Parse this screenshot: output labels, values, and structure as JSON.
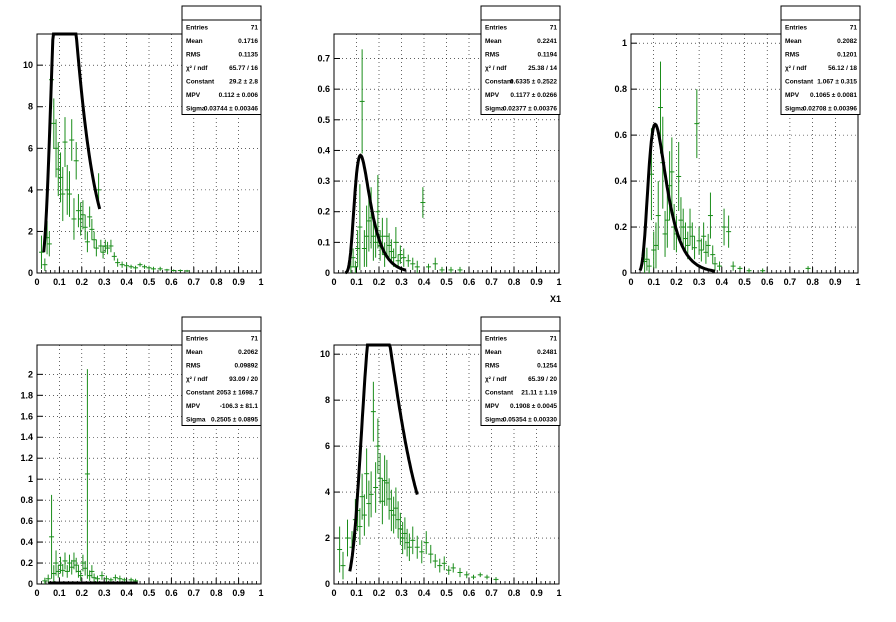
{
  "figure": {
    "xaxis_title": "X1"
  },
  "chart_data": [
    {
      "type": "scatter",
      "panel": 1,
      "xlim": [
        0,
        1
      ],
      "ylim": [
        0,
        11.5
      ],
      "xticks": [
        "0",
        "0.1",
        "0.2",
        "0.3",
        "0.4",
        "0.5",
        "0.6",
        "0.7",
        "0.8",
        "0.9",
        "1"
      ],
      "yticks": [
        0,
        2,
        4,
        6,
        8,
        10
      ],
      "grid": true,
      "stats": [
        {
          "label": "Entries",
          "value": "71"
        },
        {
          "label": "Mean",
          "value": "0.1716"
        },
        {
          "label": "RMS",
          "value": "0.1135"
        },
        {
          "label": "χ² / ndf",
          "value": "65.77 / 16"
        },
        {
          "label": "Constant",
          "value": "29.2 ± 2.8"
        },
        {
          "label": "MPV",
          "value": "0.112 ± 0.006"
        },
        {
          "label": "Sigma",
          "value": "0.03744 ± 0.00346"
        }
      ],
      "fit": {
        "constant": 29.2,
        "mpv": 0.112,
        "sigma": 0.03744,
        "range": [
          0.03,
          0.28
        ]
      },
      "points": [
        [
          0.02,
          1.0,
          0.8
        ],
        [
          0.035,
          0.4,
          0.3
        ],
        [
          0.045,
          1.7,
          0.8
        ],
        [
          0.055,
          1.4,
          0.6
        ],
        [
          0.065,
          9.3,
          1.4
        ],
        [
          0.075,
          7.2,
          1.2
        ],
        [
          0.085,
          6.0,
          1.4
        ],
        [
          0.095,
          5.0,
          1.3
        ],
        [
          0.105,
          4.6,
          1.2
        ],
        [
          0.115,
          3.8,
          1.3
        ],
        [
          0.125,
          6.3,
          1.2
        ],
        [
          0.135,
          4.0,
          1.2
        ],
        [
          0.145,
          3.8,
          1.1
        ],
        [
          0.155,
          6.4,
          1.0
        ],
        [
          0.165,
          2.6,
          1.0
        ],
        [
          0.175,
          5.4,
          0.9
        ],
        [
          0.185,
          3.0,
          0.8
        ],
        [
          0.195,
          2.6,
          0.8
        ],
        [
          0.205,
          2.8,
          0.7
        ],
        [
          0.215,
          2.2,
          0.6
        ],
        [
          0.225,
          1.5,
          0.5
        ],
        [
          0.235,
          2.7,
          0.5
        ],
        [
          0.245,
          2.1,
          0.5
        ],
        [
          0.255,
          1.6,
          0.4
        ],
        [
          0.265,
          1.2,
          0.4
        ],
        [
          0.275,
          4.0,
          0.8
        ],
        [
          0.285,
          1.3,
          0.3
        ],
        [
          0.295,
          1.0,
          0.3
        ],
        [
          0.305,
          1.3,
          0.3
        ],
        [
          0.315,
          1.2,
          0.3
        ],
        [
          0.33,
          1.3,
          0.3
        ],
        [
          0.345,
          0.8,
          0.2
        ],
        [
          0.36,
          0.5,
          0.2
        ],
        [
          0.38,
          0.4,
          0.15
        ],
        [
          0.4,
          0.35,
          0.15
        ],
        [
          0.42,
          0.3,
          0.1
        ],
        [
          0.44,
          0.25,
          0.1
        ],
        [
          0.46,
          0.4,
          0.1
        ],
        [
          0.48,
          0.3,
          0.1
        ],
        [
          0.5,
          0.25,
          0.1
        ],
        [
          0.52,
          0.2,
          0.1
        ],
        [
          0.55,
          0.2,
          0.1
        ],
        [
          0.58,
          0.15,
          0.05
        ],
        [
          0.61,
          0.12,
          0.05
        ],
        [
          0.64,
          0.12,
          0.05
        ],
        [
          0.67,
          0.1,
          0.05
        ]
      ]
    },
    {
      "type": "scatter",
      "panel": 2,
      "xlim": [
        0,
        1
      ],
      "ylim": [
        0,
        0.78
      ],
      "xticks": [
        "0",
        "0.1",
        "0.2",
        "0.3",
        "0.4",
        "0.5",
        "0.6",
        "0.7",
        "0.8",
        "0.9",
        "1"
      ],
      "yticks": [
        0,
        0.1,
        0.2,
        0.3,
        0.4,
        0.5,
        0.6,
        0.7
      ],
      "grid": true,
      "stats": [
        {
          "label": "Entries",
          "value": "71"
        },
        {
          "label": "Mean",
          "value": "0.2241"
        },
        {
          "label": "RMS",
          "value": "0.1194"
        },
        {
          "label": "χ² / ndf",
          "value": "25.38 / 14"
        },
        {
          "label": "Constant",
          "value": "0.6335 ± 0.2522"
        },
        {
          "label": "MPV",
          "value": "0.1177 ± 0.0266"
        },
        {
          "label": "Sigma",
          "value": "0.02377 ± 0.00376"
        }
      ],
      "fit": {
        "constant": 0.6335,
        "mpv": 0.1177,
        "sigma": 0.02377,
        "range": [
          0.05,
          0.32
        ]
      },
      "points": [
        [
          0.075,
          0.02,
          0.02
        ],
        [
          0.085,
          0.05,
          0.03
        ],
        [
          0.095,
          0.02,
          0.02
        ],
        [
          0.105,
          0.08,
          0.06
        ],
        [
          0.115,
          0.15,
          0.14
        ],
        [
          0.125,
          0.56,
          0.17
        ],
        [
          0.135,
          0.08,
          0.06
        ],
        [
          0.145,
          0.12,
          0.1
        ],
        [
          0.155,
          0.17,
          0.1
        ],
        [
          0.165,
          0.18,
          0.1
        ],
        [
          0.175,
          0.12,
          0.08
        ],
        [
          0.185,
          0.1,
          0.05
        ],
        [
          0.195,
          0.2,
          0.12
        ],
        [
          0.205,
          0.09,
          0.05
        ],
        [
          0.215,
          0.12,
          0.06
        ],
        [
          0.225,
          0.06,
          0.04
        ],
        [
          0.235,
          0.12,
          0.06
        ],
        [
          0.245,
          0.09,
          0.04
        ],
        [
          0.255,
          0.07,
          0.04
        ],
        [
          0.265,
          0.05,
          0.03
        ],
        [
          0.275,
          0.1,
          0.05
        ],
        [
          0.285,
          0.04,
          0.02
        ],
        [
          0.295,
          0.06,
          0.03
        ],
        [
          0.31,
          0.05,
          0.03
        ],
        [
          0.33,
          0.04,
          0.02
        ],
        [
          0.35,
          0.03,
          0.02
        ],
        [
          0.37,
          0.02,
          0.02
        ],
        [
          0.395,
          0.23,
          0.05
        ],
        [
          0.42,
          0.02,
          0.01
        ],
        [
          0.45,
          0.03,
          0.02
        ],
        [
          0.48,
          0.01,
          0.01
        ],
        [
          0.52,
          0.01,
          0.01
        ],
        [
          0.56,
          0.01,
          0.01
        ]
      ]
    },
    {
      "type": "scatter",
      "panel": 3,
      "xlim": [
        0,
        1
      ],
      "ylim": [
        0,
        1.04
      ],
      "xticks": [
        "0",
        "0.1",
        "0.2",
        "0.3",
        "0.4",
        "0.5",
        "0.6",
        "0.7",
        "0.8",
        "0.9",
        "1"
      ],
      "yticks": [
        0,
        0.2,
        0.4,
        0.6,
        0.8,
        1
      ],
      "grid": true,
      "stats": [
        {
          "label": "Entries",
          "value": "71"
        },
        {
          "label": "Mean",
          "value": "0.2082"
        },
        {
          "label": "RMS",
          "value": "0.1201"
        },
        {
          "label": "χ² / ndf",
          "value": "56.12 / 18"
        },
        {
          "label": "Constant",
          "value": "1.067 ± 0.315"
        },
        {
          "label": "MPV",
          "value": "0.1065 ± 0.0081"
        },
        {
          "label": "Sigma",
          "value": "0.02708 ± 0.00396"
        }
      ],
      "fit": {
        "constant": 1.067,
        "mpv": 0.1065,
        "sigma": 0.02708,
        "range": [
          0.04,
          0.37
        ]
      },
      "points": [
        [
          0.06,
          0.05,
          0.05
        ],
        [
          0.07,
          0.06,
          0.05
        ],
        [
          0.08,
          0.03,
          0.03
        ],
        [
          0.09,
          0.43,
          0.2
        ],
        [
          0.1,
          0.1,
          0.08
        ],
        [
          0.11,
          0.12,
          0.1
        ],
        [
          0.12,
          0.25,
          0.15
        ],
        [
          0.13,
          0.72,
          0.2
        ],
        [
          0.14,
          0.48,
          0.2
        ],
        [
          0.15,
          0.17,
          0.1
        ],
        [
          0.16,
          0.23,
          0.12
        ],
        [
          0.17,
          0.38,
          0.15
        ],
        [
          0.18,
          0.44,
          0.15
        ],
        [
          0.19,
          0.2,
          0.1
        ],
        [
          0.2,
          0.17,
          0.08
        ],
        [
          0.21,
          0.42,
          0.15
        ],
        [
          0.22,
          0.23,
          0.1
        ],
        [
          0.23,
          0.2,
          0.08
        ],
        [
          0.24,
          0.15,
          0.07
        ],
        [
          0.25,
          0.12,
          0.06
        ],
        [
          0.26,
          0.2,
          0.08
        ],
        [
          0.27,
          0.16,
          0.06
        ],
        [
          0.28,
          0.11,
          0.05
        ],
        [
          0.29,
          0.65,
          0.15
        ],
        [
          0.3,
          0.14,
          0.06
        ],
        [
          0.31,
          0.1,
          0.05
        ],
        [
          0.32,
          0.16,
          0.06
        ],
        [
          0.33,
          0.09,
          0.05
        ],
        [
          0.34,
          0.12,
          0.05
        ],
        [
          0.35,
          0.25,
          0.1
        ],
        [
          0.36,
          0.08,
          0.04
        ],
        [
          0.37,
          0.04,
          0.03
        ],
        [
          0.39,
          0.03,
          0.02
        ],
        [
          0.41,
          0.2,
          0.08
        ],
        [
          0.43,
          0.18,
          0.07
        ],
        [
          0.45,
          0.03,
          0.02
        ],
        [
          0.48,
          0.02,
          0.01
        ],
        [
          0.52,
          0.01,
          0.01
        ],
        [
          0.58,
          0.01,
          0.01
        ],
        [
          0.78,
          0.02,
          0.01
        ]
      ]
    },
    {
      "type": "scatter",
      "panel": 4,
      "xlim": [
        0,
        1
      ],
      "ylim": [
        0,
        2.28
      ],
      "xticks": [
        "0",
        "0.1",
        "0.2",
        "0.3",
        "0.4",
        "0.5",
        "0.6",
        "0.7",
        "0.8",
        "0.9",
        "1"
      ],
      "yticks": [
        0,
        0.2,
        0.4,
        0.6,
        0.8,
        1,
        1.2,
        1.4,
        1.6,
        1.8,
        2
      ],
      "grid": true,
      "stats": [
        {
          "label": "Entries",
          "value": "71"
        },
        {
          "label": "Mean",
          "value": "0.2062"
        },
        {
          "label": "RMS",
          "value": "0.09892"
        },
        {
          "label": "χ² / ndf",
          "value": "93.09 / 20"
        },
        {
          "label": "Constant",
          "value": "2053 ± 1698.7"
        },
        {
          "label": "MPV",
          "value": "-106.3 ± 81.1"
        },
        {
          "label": "Sigma",
          "value": "0.2505 ± 0.0895"
        }
      ],
      "fit": {
        "kind": "flat",
        "level": 0.01,
        "range": [
          0.05,
          0.45
        ]
      },
      "points": [
        [
          0.035,
          0.03,
          0.03
        ],
        [
          0.05,
          0.05,
          0.04
        ],
        [
          0.065,
          0.45,
          0.4
        ],
        [
          0.075,
          0.1,
          0.08
        ],
        [
          0.085,
          0.2,
          0.12
        ],
        [
          0.095,
          0.12,
          0.06
        ],
        [
          0.105,
          0.18,
          0.08
        ],
        [
          0.115,
          0.13,
          0.06
        ],
        [
          0.125,
          0.22,
          0.08
        ],
        [
          0.135,
          0.12,
          0.06
        ],
        [
          0.145,
          0.2,
          0.08
        ],
        [
          0.155,
          0.16,
          0.07
        ],
        [
          0.165,
          0.22,
          0.08
        ],
        [
          0.175,
          0.18,
          0.07
        ],
        [
          0.185,
          0.12,
          0.06
        ],
        [
          0.195,
          0.08,
          0.05
        ],
        [
          0.205,
          0.2,
          0.08
        ],
        [
          0.215,
          0.15,
          0.07
        ],
        [
          0.225,
          1.05,
          1.0
        ],
        [
          0.235,
          0.08,
          0.05
        ],
        [
          0.245,
          0.12,
          0.06
        ],
        [
          0.255,
          0.06,
          0.04
        ],
        [
          0.27,
          0.05,
          0.03
        ],
        [
          0.29,
          0.08,
          0.04
        ],
        [
          0.31,
          0.05,
          0.03
        ],
        [
          0.33,
          0.04,
          0.02
        ],
        [
          0.35,
          0.06,
          0.03
        ],
        [
          0.37,
          0.05,
          0.03
        ],
        [
          0.39,
          0.04,
          0.02
        ],
        [
          0.42,
          0.04,
          0.02
        ],
        [
          0.44,
          0.03,
          0.02
        ]
      ]
    },
    {
      "type": "scatter",
      "panel": 5,
      "xlim": [
        0,
        1
      ],
      "ylim": [
        0,
        10.4
      ],
      "xticks": [
        "0",
        "0.1",
        "0.2",
        "0.3",
        "0.4",
        "0.5",
        "0.6",
        "0.7",
        "0.8",
        "0.9",
        "1"
      ],
      "yticks": [
        0,
        2,
        4,
        6,
        8,
        10
      ],
      "grid": true,
      "stats": [
        {
          "label": "Entries",
          "value": "71"
        },
        {
          "label": "Mean",
          "value": "0.2481"
        },
        {
          "label": "RMS",
          "value": "0.1254"
        },
        {
          "label": "χ² / ndf",
          "value": "65.39 / 20"
        },
        {
          "label": "Constant",
          "value": "21.11 ± 1.19"
        },
        {
          "label": "MPV",
          "value": "0.1908 ± 0.0045"
        },
        {
          "label": "Sigma",
          "value": "0.05354 ± 0.00330"
        }
      ],
      "fit": {
        "constant": 21.11,
        "mpv": 0.1908,
        "sigma": 0.05354,
        "range": [
          0.07,
          0.37
        ]
      },
      "points": [
        [
          0.025,
          1.5,
          1.0
        ],
        [
          0.04,
          0.8,
          0.6
        ],
        [
          0.06,
          2.0,
          0.8
        ],
        [
          0.08,
          1.6,
          0.7
        ],
        [
          0.095,
          2.8,
          0.9
        ],
        [
          0.105,
          3.2,
          0.9
        ],
        [
          0.115,
          2.5,
          0.8
        ],
        [
          0.125,
          3.8,
          1.0
        ],
        [
          0.135,
          3.0,
          0.9
        ],
        [
          0.145,
          4.8,
          1.1
        ],
        [
          0.155,
          3.5,
          1.0
        ],
        [
          0.165,
          3.9,
          1.0
        ],
        [
          0.175,
          7.5,
          1.3
        ],
        [
          0.185,
          4.2,
          1.1
        ],
        [
          0.195,
          6.0,
          1.2
        ],
        [
          0.205,
          4.6,
          1.1
        ],
        [
          0.215,
          3.6,
          1.0
        ],
        [
          0.225,
          4.5,
          1.1
        ],
        [
          0.235,
          4.4,
          1.0
        ],
        [
          0.245,
          3.7,
          0.9
        ],
        [
          0.255,
          3.2,
          0.9
        ],
        [
          0.265,
          3.0,
          0.8
        ],
        [
          0.275,
          3.3,
          0.9
        ],
        [
          0.285,
          2.8,
          0.8
        ],
        [
          0.295,
          2.4,
          0.7
        ],
        [
          0.305,
          2.0,
          0.7
        ],
        [
          0.315,
          2.2,
          0.7
        ],
        [
          0.325,
          1.8,
          0.6
        ],
        [
          0.335,
          1.6,
          0.6
        ],
        [
          0.35,
          1.9,
          0.6
        ],
        [
          0.37,
          1.6,
          0.5
        ],
        [
          0.39,
          1.4,
          0.5
        ],
        [
          0.41,
          1.8,
          0.5
        ],
        [
          0.43,
          1.3,
          0.4
        ],
        [
          0.45,
          1.0,
          0.3
        ],
        [
          0.47,
          0.8,
          0.3
        ],
        [
          0.49,
          0.9,
          0.3
        ],
        [
          0.51,
          0.6,
          0.2
        ],
        [
          0.53,
          0.7,
          0.2
        ],
        [
          0.56,
          0.5,
          0.2
        ],
        [
          0.59,
          0.4,
          0.15
        ],
        [
          0.62,
          0.3,
          0.1
        ],
        [
          0.65,
          0.4,
          0.1
        ],
        [
          0.68,
          0.3,
          0.1
        ],
        [
          0.72,
          0.2,
          0.1
        ]
      ]
    }
  ]
}
